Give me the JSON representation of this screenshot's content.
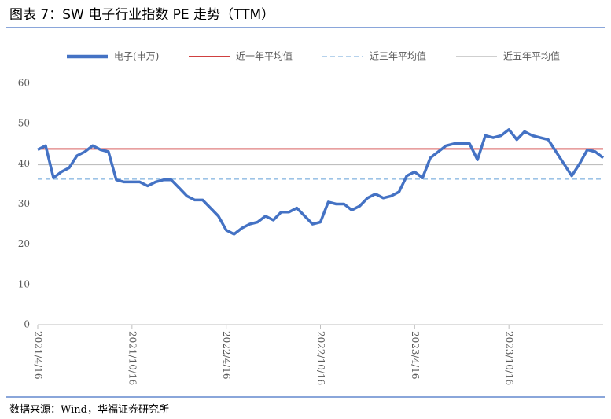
{
  "chart_data": {
    "type": "line",
    "title": "图表 7：SW 电子行业指数 PE 走势（TTM）",
    "source": "数据来源：Wind，华福证券研究所",
    "categories": [
      "2021/4/16",
      null,
      null,
      null,
      null,
      null,
      null,
      null,
      null,
      null,
      null,
      null,
      "2021/10/16",
      null,
      null,
      null,
      null,
      null,
      null,
      null,
      null,
      null,
      null,
      null,
      "2022/4/16",
      null,
      null,
      null,
      null,
      null,
      null,
      null,
      null,
      null,
      null,
      null,
      "2022/10/16",
      null,
      null,
      null,
      null,
      null,
      null,
      null,
      null,
      null,
      null,
      null,
      "2023/4/16",
      null,
      null,
      null,
      null,
      null,
      null,
      null,
      null,
      null,
      null,
      null,
      "2023/10/16",
      null,
      null,
      null,
      null,
      null,
      null,
      null,
      null,
      null,
      null,
      null,
      null
    ],
    "series": [
      {
        "name": "电子(申万)",
        "color": "#4472c4",
        "values": [
          43.5,
          44.5,
          36.5,
          38,
          39,
          42,
          43,
          44.5,
          43.5,
          43,
          36,
          35.5,
          35.5,
          35.5,
          34.5,
          35.5,
          36,
          36,
          34,
          32,
          31,
          31,
          29,
          27,
          23.5,
          22.5,
          24,
          25,
          25.5,
          27,
          26,
          28,
          28,
          29,
          27,
          25,
          25.5,
          30.5,
          30,
          30,
          28.5,
          29.5,
          31.5,
          32.5,
          31.5,
          32,
          33,
          37,
          38,
          36.5,
          41.5,
          43,
          44.5,
          45,
          45,
          45,
          41,
          47,
          46.5,
          47,
          48.5,
          46,
          48,
          47,
          46.5,
          46,
          43,
          40,
          37,
          40,
          43.5,
          43,
          41.5
        ]
      }
    ],
    "reference_lines": [
      {
        "name": "近一年平均值",
        "color": "#c00000",
        "value": 43.7,
        "style": "solid"
      },
      {
        "name": "近三年平均值",
        "color": "#9dc3e6",
        "value": 36.2,
        "style": "dashed"
      },
      {
        "name": "近五年平均值",
        "color": "#bfbfbf",
        "value": 39.8,
        "style": "solid"
      }
    ],
    "ylim": [
      0,
      60
    ],
    "yticks": [
      0,
      10,
      20,
      30,
      40,
      50,
      60
    ],
    "grid": false,
    "legend": "top"
  }
}
